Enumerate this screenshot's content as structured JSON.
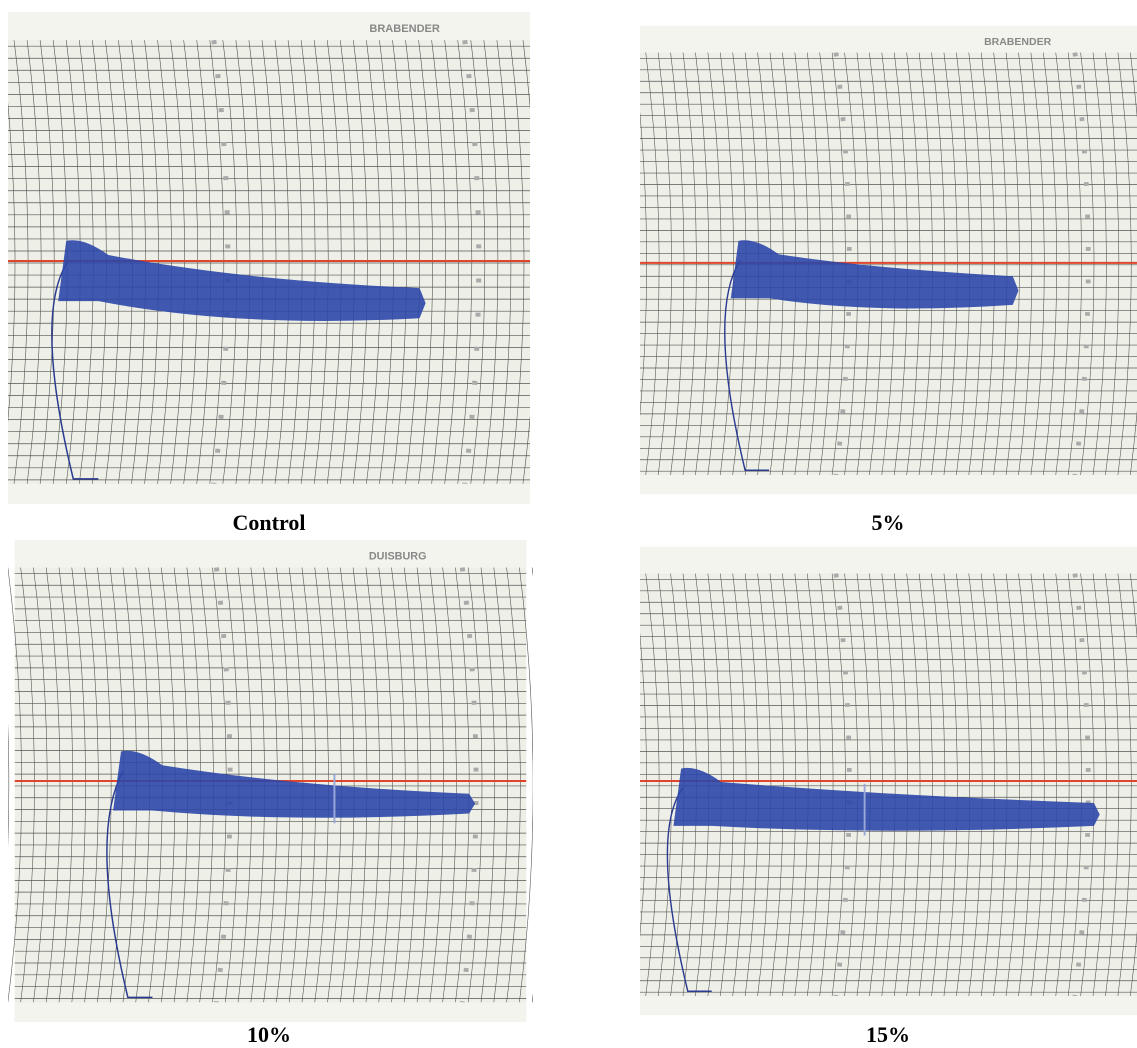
{
  "panels": [
    {
      "header": "BRABENDER",
      "caption": "Control"
    },
    {
      "header": "BRABENDER",
      "caption": "5%"
    },
    {
      "header": "DUISBURG",
      "caption": "10%"
    },
    {
      "header": "",
      "caption": "15%"
    }
  ]
}
